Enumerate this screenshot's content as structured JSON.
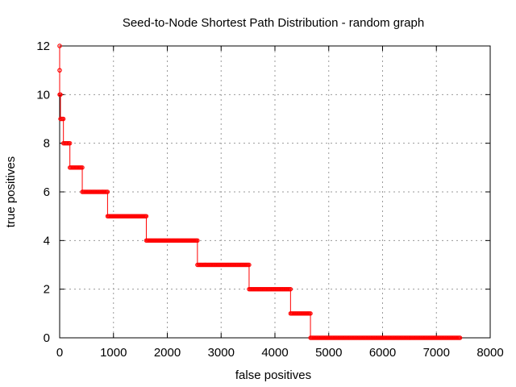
{
  "chart_data": {
    "type": "line",
    "title": "Seed-to-Node Shortest Path Distribution - random graph",
    "xlabel": "false positives",
    "ylabel": "true positives",
    "xlim": [
      0,
      8000
    ],
    "ylim": [
      0,
      12
    ],
    "xticks": [
      0,
      1000,
      2000,
      3000,
      4000,
      5000,
      6000,
      7000,
      8000
    ],
    "yticks": [
      0,
      2,
      4,
      6,
      8,
      10,
      12
    ],
    "grid": true,
    "legend": "none",
    "series": [
      {
        "color": "#ff0000",
        "step_segments": [
          {
            "y": 12,
            "x_start": 0,
            "x_end": 0
          },
          {
            "y": 11,
            "x_start": 0,
            "x_end": 0
          },
          {
            "y": 10,
            "x_start": 0,
            "x_end": 15
          },
          {
            "y": 9,
            "x_start": 15,
            "x_end": 70
          },
          {
            "y": 8,
            "x_start": 70,
            "x_end": 190
          },
          {
            "y": 7,
            "x_start": 190,
            "x_end": 420
          },
          {
            "y": 6,
            "x_start": 420,
            "x_end": 890
          },
          {
            "y": 5,
            "x_start": 890,
            "x_end": 1610
          },
          {
            "y": 4,
            "x_start": 1610,
            "x_end": 2560
          },
          {
            "y": 3,
            "x_start": 2560,
            "x_end": 3520
          },
          {
            "y": 2,
            "x_start": 3520,
            "x_end": 4290
          },
          {
            "y": 1,
            "x_start": 4290,
            "x_end": 4660
          },
          {
            "y": 0,
            "x_start": 4660,
            "x_end": 7440
          }
        ]
      }
    ]
  }
}
